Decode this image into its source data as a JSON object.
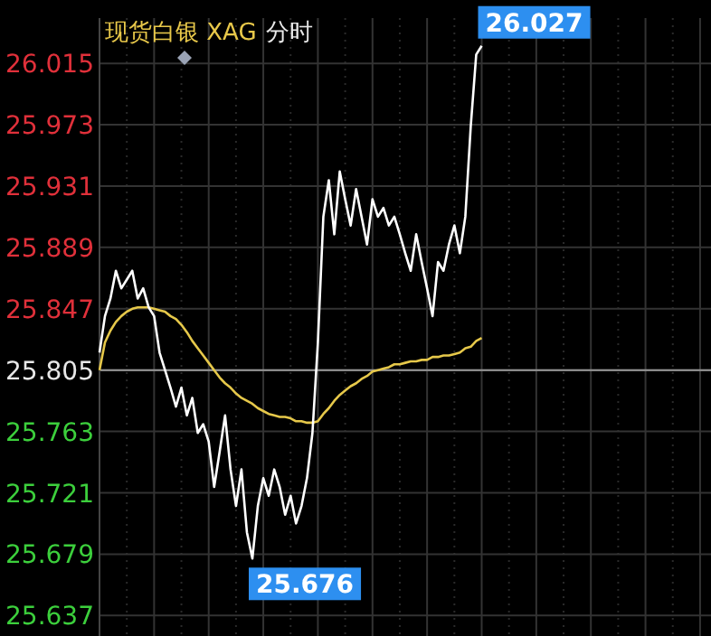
{
  "chart_data": {
    "type": "line",
    "title": "现货白银 XAG",
    "subtitle": "分时",
    "categories": [
      null,
      null,
      null,
      null,
      null,
      null,
      null,
      null,
      null,
      null,
      null,
      null,
      null,
      null,
      null,
      null,
      null,
      null,
      null,
      null,
      null,
      null,
      null,
      null,
      null,
      null,
      null,
      null,
      null,
      null,
      null,
      null,
      null,
      null,
      null,
      null,
      null,
      null,
      null,
      null,
      null,
      null,
      null,
      null,
      null,
      null,
      null,
      null,
      null,
      null,
      null,
      null,
      null,
      null,
      null,
      null,
      null,
      null,
      null,
      null,
      null,
      null,
      null,
      null,
      null,
      null,
      null,
      null,
      null,
      null,
      null,
      null,
      null,
      null,
      null,
      null,
      null,
      null,
      null,
      null,
      null,
      null,
      null,
      null,
      null,
      null,
      null,
      null,
      null,
      null,
      null,
      null,
      null,
      null,
      null,
      null,
      null,
      null,
      null,
      null,
      null,
      null,
      null,
      null,
      null,
      null,
      null,
      null,
      null,
      null,
      null,
      null,
      null
    ],
    "series": [
      {
        "color": "#ffffff",
        "values": [
          25.817,
          25.842,
          25.854,
          25.873,
          25.861,
          25.867,
          25.873,
          25.854,
          25.861,
          25.848,
          25.842,
          25.817,
          25.805,
          25.793,
          25.78,
          25.793,
          25.774,
          25.786,
          25.762,
          25.768,
          25.756,
          25.725,
          25.749,
          25.774,
          25.737,
          25.712,
          25.737,
          25.694,
          25.676,
          25.712,
          25.731,
          25.719,
          25.737,
          25.725,
          25.706,
          25.719,
          25.7,
          25.712,
          25.731,
          25.762,
          25.824,
          25.91,
          25.935,
          25.898,
          25.941,
          25.922,
          25.904,
          25.929,
          25.91,
          25.891,
          25.922,
          25.91,
          25.916,
          25.904,
          25.91,
          25.898,
          25.885,
          25.873,
          25.898,
          25.879,
          25.861,
          25.842,
          25.879,
          25.873,
          25.891,
          25.904,
          25.885,
          25.91,
          25.972,
          26.021,
          26.027,
          null,
          null,
          null,
          null,
          null,
          null,
          null,
          null,
          null,
          null,
          null,
          null,
          null,
          null,
          null,
          null,
          null,
          null,
          null,
          null,
          null,
          null,
          null,
          null,
          null,
          null,
          null,
          null,
          null,
          null,
          null,
          null,
          null,
          null,
          null,
          null,
          null,
          null,
          null,
          null,
          null,
          null
        ]
      },
      {
        "color": "#e6c84a",
        "values": [
          25.805,
          25.824,
          25.832,
          25.838,
          25.842,
          25.845,
          25.847,
          25.848,
          25.848,
          25.848,
          25.847,
          25.846,
          25.845,
          25.842,
          25.84,
          25.836,
          25.831,
          25.825,
          25.82,
          25.815,
          25.81,
          25.805,
          25.8,
          25.796,
          25.793,
          25.789,
          25.786,
          25.784,
          25.782,
          25.779,
          25.777,
          25.775,
          25.774,
          25.773,
          25.773,
          25.772,
          25.77,
          25.77,
          25.769,
          25.769,
          25.77,
          25.775,
          25.779,
          25.784,
          25.788,
          25.791,
          25.794,
          25.796,
          25.799,
          25.801,
          25.804,
          25.805,
          25.806,
          25.807,
          25.809,
          25.809,
          25.81,
          25.811,
          25.811,
          25.812,
          25.812,
          25.814,
          25.814,
          25.815,
          25.815,
          25.816,
          25.817,
          25.82,
          25.821,
          25.825,
          25.827,
          null,
          null,
          null,
          null,
          null,
          null,
          null,
          null,
          null,
          null,
          null,
          null,
          null,
          null,
          null,
          null,
          null,
          null,
          null,
          null,
          null,
          null,
          null,
          null,
          null,
          null,
          null,
          null,
          null,
          null,
          null,
          null,
          null,
          null,
          null,
          null,
          null,
          null,
          null,
          null,
          null,
          null
        ]
      }
    ],
    "ylim": [
      25.623,
      26.046
    ],
    "yticks": [
      {
        "value": 26.015,
        "label": "26.015"
      },
      {
        "value": 25.973,
        "label": "25.973"
      },
      {
        "value": 25.931,
        "label": "25.931"
      },
      {
        "value": 25.889,
        "label": "25.889"
      },
      {
        "value": 25.847,
        "label": "25.847"
      },
      {
        "value": 25.805,
        "label": "25.805"
      },
      {
        "value": 25.763,
        "label": "25.763"
      },
      {
        "value": 25.721,
        "label": "25.721"
      },
      {
        "value": 25.679,
        "label": "25.679"
      },
      {
        "value": 25.637,
        "label": "25.637"
      }
    ],
    "ref_lines": [
      {
        "axis": "y",
        "value": 25.805,
        "color": "#9a9a9a"
      }
    ],
    "annotations": [
      "26.027",
      "25.676"
    ],
    "grid": true,
    "marker": "none",
    "line_style": "solid"
  }
}
